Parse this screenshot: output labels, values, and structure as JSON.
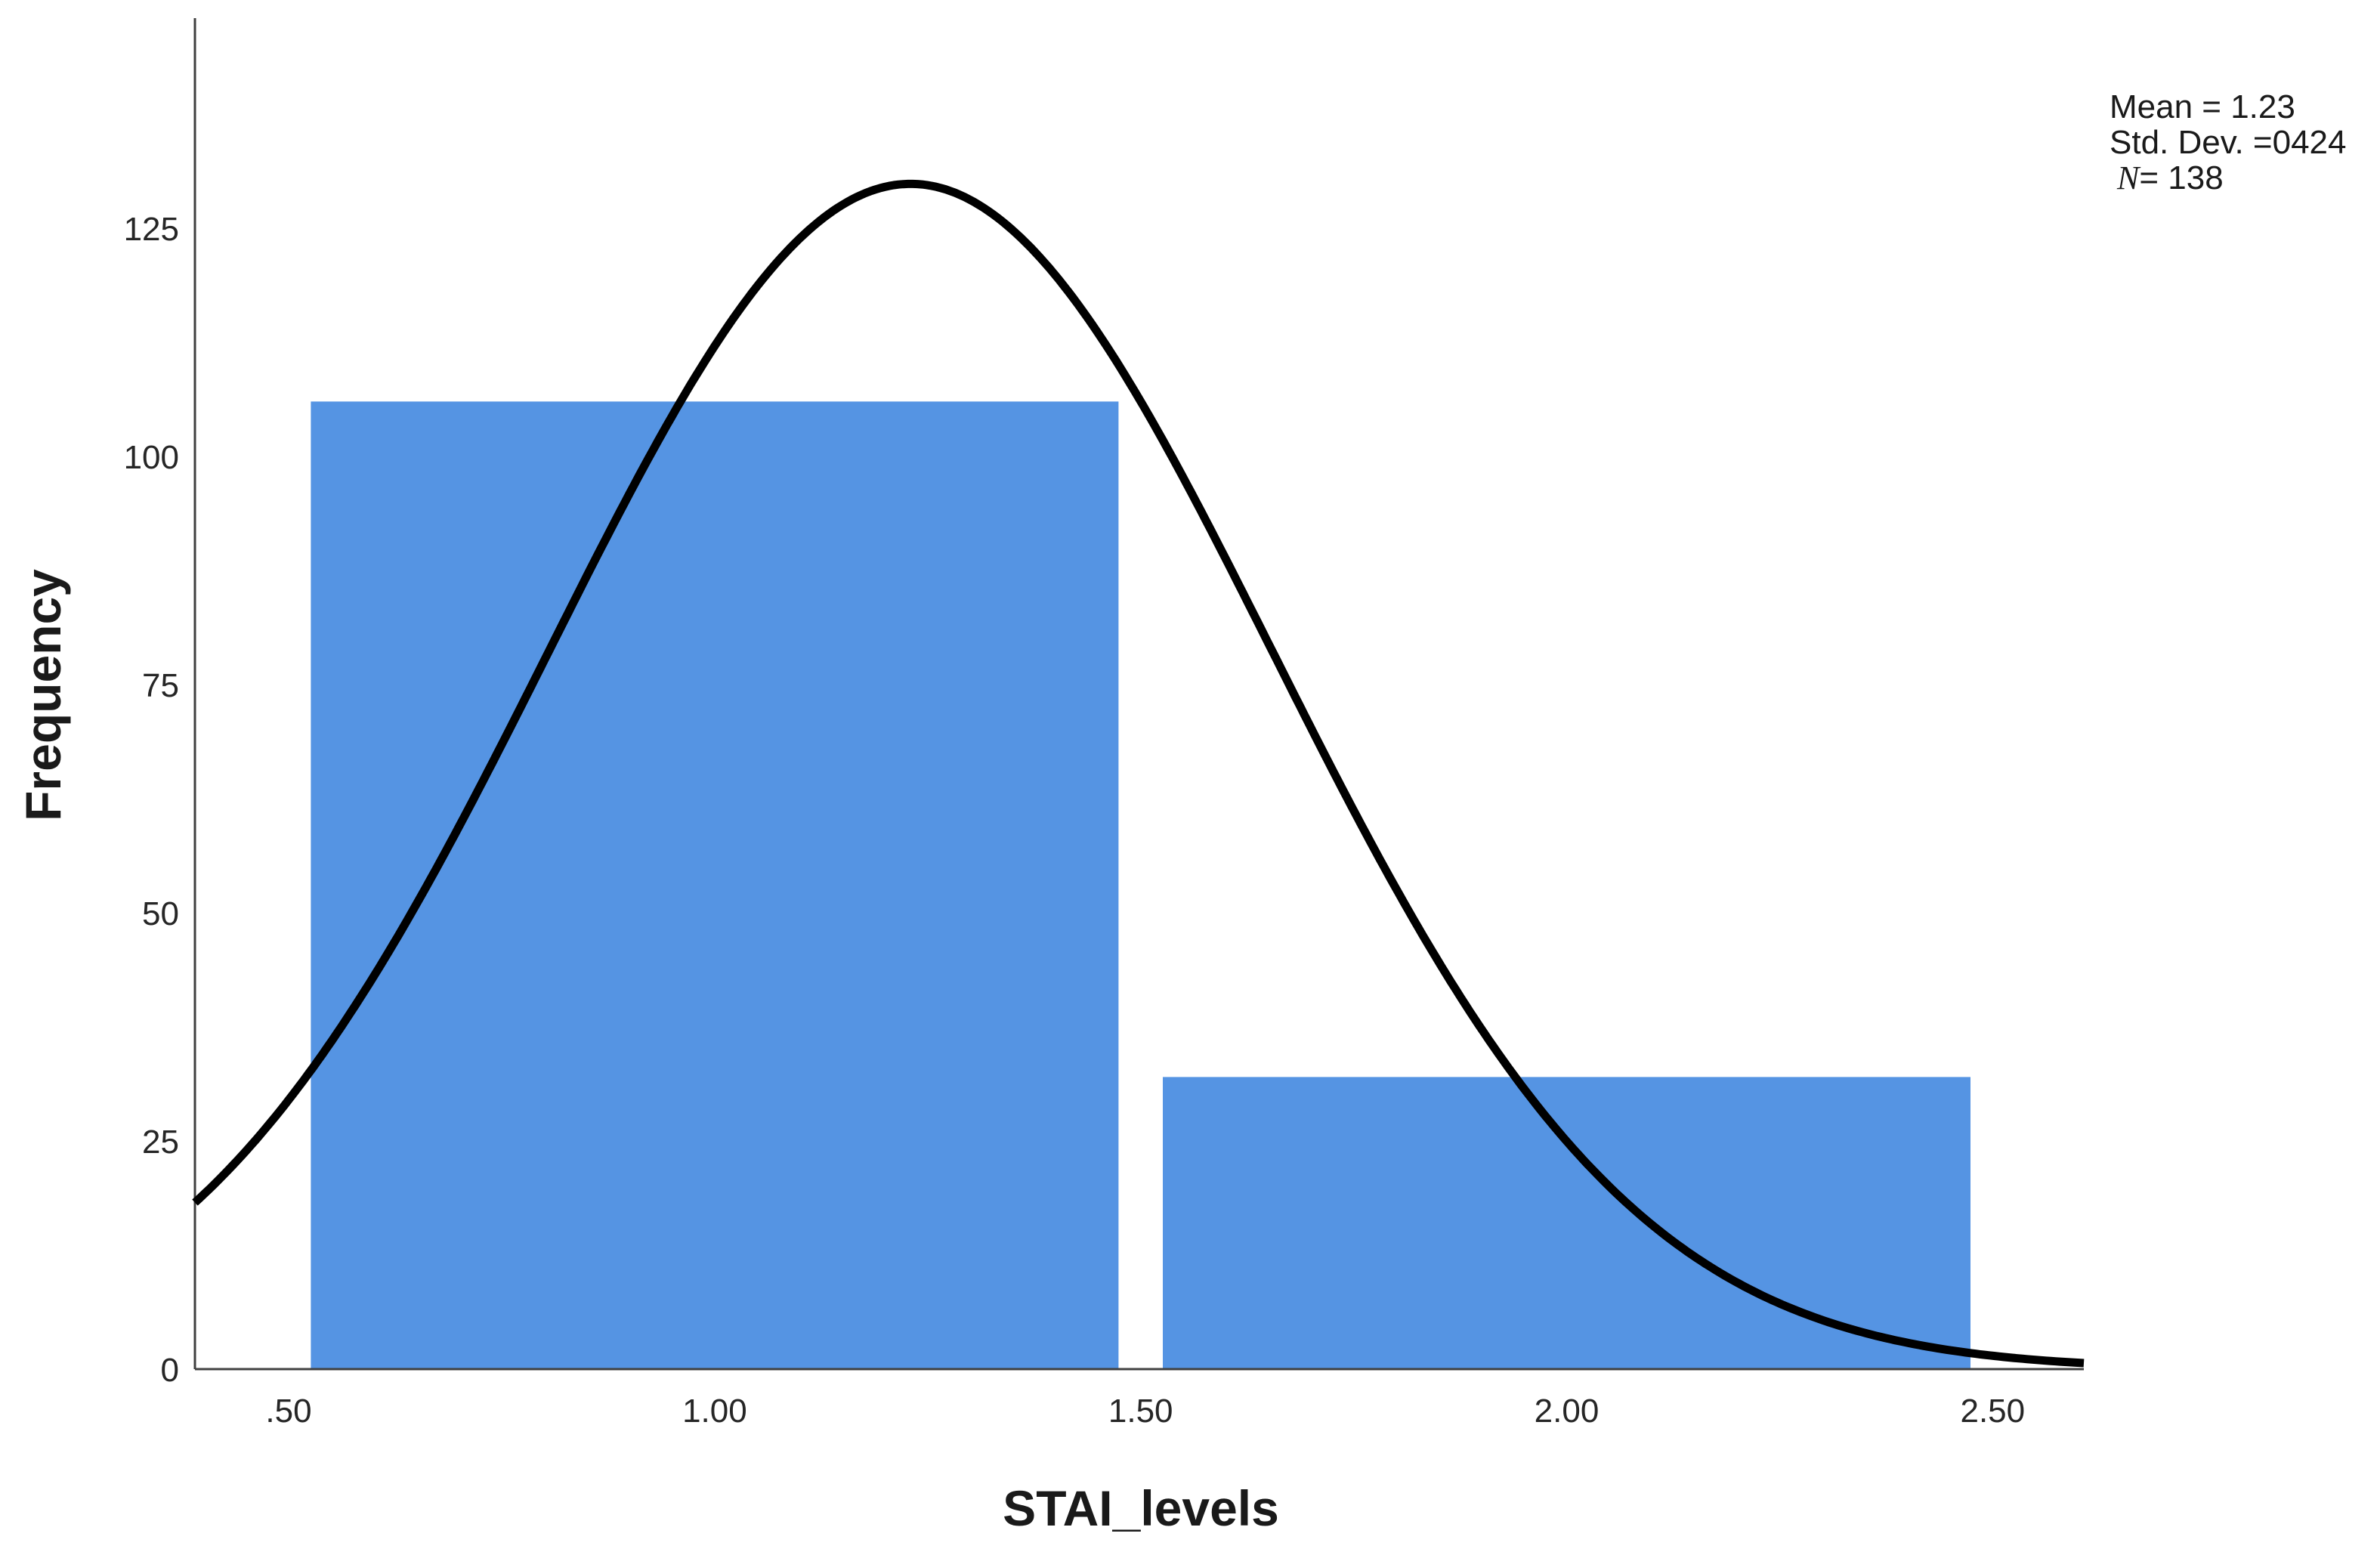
{
  "chart_data": {
    "type": "bar",
    "title": "",
    "xlabel": "STAI_levels",
    "ylabel": "Frequency",
    "x": [
      1.0,
      2.0
    ],
    "values": [
      106,
      32
    ],
    "bin_width": 1,
    "xlim": [
      0.39,
      2.607
    ],
    "ylim": [
      0,
      148
    ],
    "x_ticks": [
      0.5,
      1.0,
      1.5,
      2.0,
      2.5
    ],
    "x_tick_labels": [
      ".50",
      "1.00",
      "1.50",
      "2.00",
      "2.50"
    ],
    "y_ticks": [
      0,
      25,
      50,
      75,
      100,
      125
    ],
    "y_tick_labels": [
      "0",
      "25",
      "50",
      "75",
      "100",
      "125"
    ],
    "normal_curve": {
      "mean": 1.23,
      "std_dev": 0.424,
      "n": 138
    },
    "annotations": {
      "mean": "Mean = 1.23",
      "std_dev": "Std. Dev. =0424",
      "n_symbol": "N",
      "n": "= 138"
    },
    "grid": false,
    "colors": {
      "bar": "#5594e3",
      "curve": "#000000"
    }
  }
}
